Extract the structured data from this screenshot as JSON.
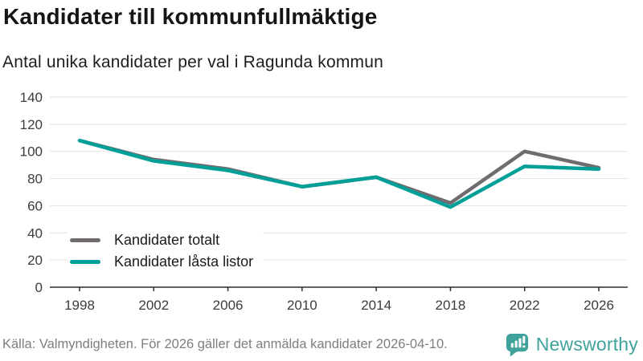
{
  "header": {
    "title": "Kandidater till kommunfullmäktige",
    "subtitle": "Antal unika kandidater per val i Ragunda kommun"
  },
  "chart_data": {
    "type": "line",
    "x": [
      "1998",
      "2002",
      "2006",
      "2010",
      "2014",
      "2018",
      "2022",
      "2026"
    ],
    "series": [
      {
        "name": "Kandidater totalt",
        "color": "#6f6b6f",
        "values": [
          108,
          94,
          87,
          74,
          81,
          62,
          100,
          88
        ]
      },
      {
        "name": "Kandidater låsta listor",
        "color": "#00a099",
        "values": [
          108,
          93,
          86,
          74,
          81,
          59,
          89,
          87
        ]
      }
    ],
    "title": "Kandidater till kommunfullmäktige",
    "subtitle": "Antal unika kandidater per val i Ragunda kommun",
    "xlabel": "",
    "ylabel": "",
    "ylim": [
      0,
      140
    ],
    "ytick_step": 20,
    "grid": true,
    "legend_position": "inside-bottom-left",
    "grid_color": "#e2e2e2",
    "axis_color": "#2e2e2e"
  },
  "footer": {
    "source": "Källa: Valmyndigheten. För 2026 gäller det anmälda kandidater 2026-04-10.",
    "brand": "Newsworthy",
    "brand_color": "#3fa39b"
  }
}
